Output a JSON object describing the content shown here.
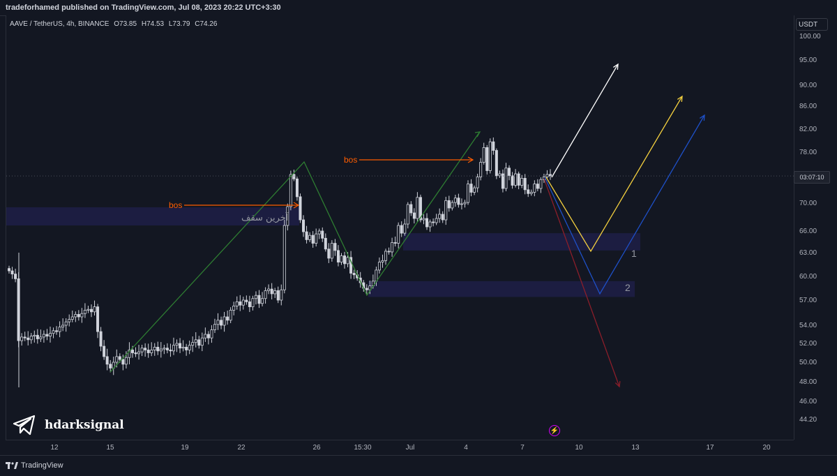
{
  "header": {
    "published": "tradeforhamed published on TradingView.com, Jul 08, 2023 20:22 UTC+3:30"
  },
  "legend": {
    "symbol": "AAVE / TetherUS, 4h, BINANCE",
    "open": "O73.85",
    "high": "H74.53",
    "low": "L73.79",
    "close": "C74.26"
  },
  "price_axis": {
    "currency": "USDT",
    "countdown": "03:07:10"
  },
  "footer": {
    "brand": "TradingView"
  },
  "watermark": {
    "text": "hdarksignal",
    "icon": "telegram-icon"
  },
  "annotations": {
    "bos_1": "bos",
    "bos_2": "bos",
    "persian_label": "آخرین سقف",
    "zone_1": "1",
    "zone_2": "2",
    "bolt_icon": "lightning-icon"
  },
  "colors": {
    "background": "#131722",
    "candle": "#d1d4dc",
    "bos_arrow": "#ff5d00",
    "uptrend": "#2e7d32",
    "zone": "#1e1e46",
    "arrow_white": "#ffffff",
    "arrow_yellow": "#f4d03f",
    "arrow_blue": "#1e50c8",
    "arrow_red": "#8b1e2a"
  },
  "chart_data": {
    "type": "candlestick",
    "symbol": "AAVE / TetherUS",
    "timeframe": "4h",
    "exchange": "BINANCE",
    "y_ticks": [
      "100.00",
      "95.00",
      "90.00",
      "86.00",
      "82.00",
      "78.00",
      "70.00",
      "66.00",
      "63.00",
      "60.00",
      "57.00",
      "54.00",
      "52.00",
      "50.00",
      "48.00",
      "46.00",
      "44.20"
    ],
    "y_tick_values": [
      100,
      95,
      90,
      86,
      82,
      78,
      70,
      66,
      63,
      60,
      57,
      54,
      52,
      50,
      48,
      46,
      44.2
    ],
    "x_ticks": [
      "12",
      "15",
      "19",
      "22",
      "26",
      "15:30",
      "Jul",
      "4",
      "7",
      "10",
      "13",
      "17",
      "20"
    ],
    "last_price": 74.26,
    "close_series": [
      60.7,
      60.3,
      59.7,
      52.3,
      52.7,
      52.6,
      52.4,
      52.8,
      52.9,
      52.5,
      52.7,
      53.0,
      52.8,
      53.1,
      53.4,
      53.3,
      53.8,
      54.0,
      54.4,
      54.7,
      55.0,
      55.3,
      55.0,
      55.4,
      55.8,
      55.9,
      55.6,
      56.2,
      53.3,
      51.7,
      50.6,
      49.8,
      49.4,
      50.0,
      50.6,
      50.3,
      49.8,
      50.5,
      51.3,
      51.0,
      50.9,
      51.1,
      51.5,
      51.3,
      51.0,
      51.3,
      51.6,
      51.2,
      51.4,
      51.5,
      51.3,
      51.2,
      51.8,
      52.0,
      51.5,
      51.6,
      51.3,
      51.8,
      52.1,
      52.4,
      51.8,
      52.6,
      53.0,
      52.6,
      53.5,
      54.1,
      54.6,
      54.0,
      55.0,
      54.6,
      55.8,
      56.3,
      56.8,
      56.4,
      57.0,
      56.8,
      56.2,
      57.2,
      57.6,
      56.6,
      57.2,
      58.2,
      58.4,
      57.8,
      58.2,
      57.0,
      58.3,
      66.8,
      69.5,
      74.5,
      73.8,
      71.0,
      67.6,
      65.9,
      64.8,
      65.4,
      64.3,
      65.6,
      66.0,
      65.0,
      63.5,
      62.3,
      64.3,
      63.3,
      61.8,
      62.6,
      61.6,
      62.4,
      60.4,
      60.2,
      59.8,
      59.2,
      58.5,
      58.3,
      58.8,
      59.4,
      60.8,
      61.8,
      62.0,
      63.2,
      63.1,
      64.4,
      64.3,
      66.8,
      65.7,
      67.0,
      69.8,
      68.6,
      67.8,
      70.9,
      67.6,
      67.8,
      66.6,
      67.3,
      67.2,
      67.8,
      68.4,
      67.6,
      70.4,
      69.3,
      70.1,
      70.8,
      69.8,
      69.9,
      70.1,
      73.0,
      71.7,
      72.4,
      74.1,
      76.4,
      78.8,
      75.1,
      79.8,
      78.3,
      74.3,
      74.6,
      72.3,
      75.5,
      74.3,
      72.8,
      74.6,
      72.8,
      73.9,
      72.1,
      71.5,
      71.7,
      73.0,
      72.3,
      73.7,
      74.1,
      74.5,
      74.26
    ],
    "annotations": [
      {
        "label": "bos",
        "price": 69.9
      },
      {
        "label": "bos",
        "price": 77.2
      },
      {
        "label": "آخرین سقف",
        "price": 68.6
      },
      {
        "label": "1",
        "zone_from": 63.3,
        "zone_to": 65.7
      },
      {
        "label": "2",
        "zone_from": 57.4,
        "zone_to": 59.4
      }
    ]
  }
}
